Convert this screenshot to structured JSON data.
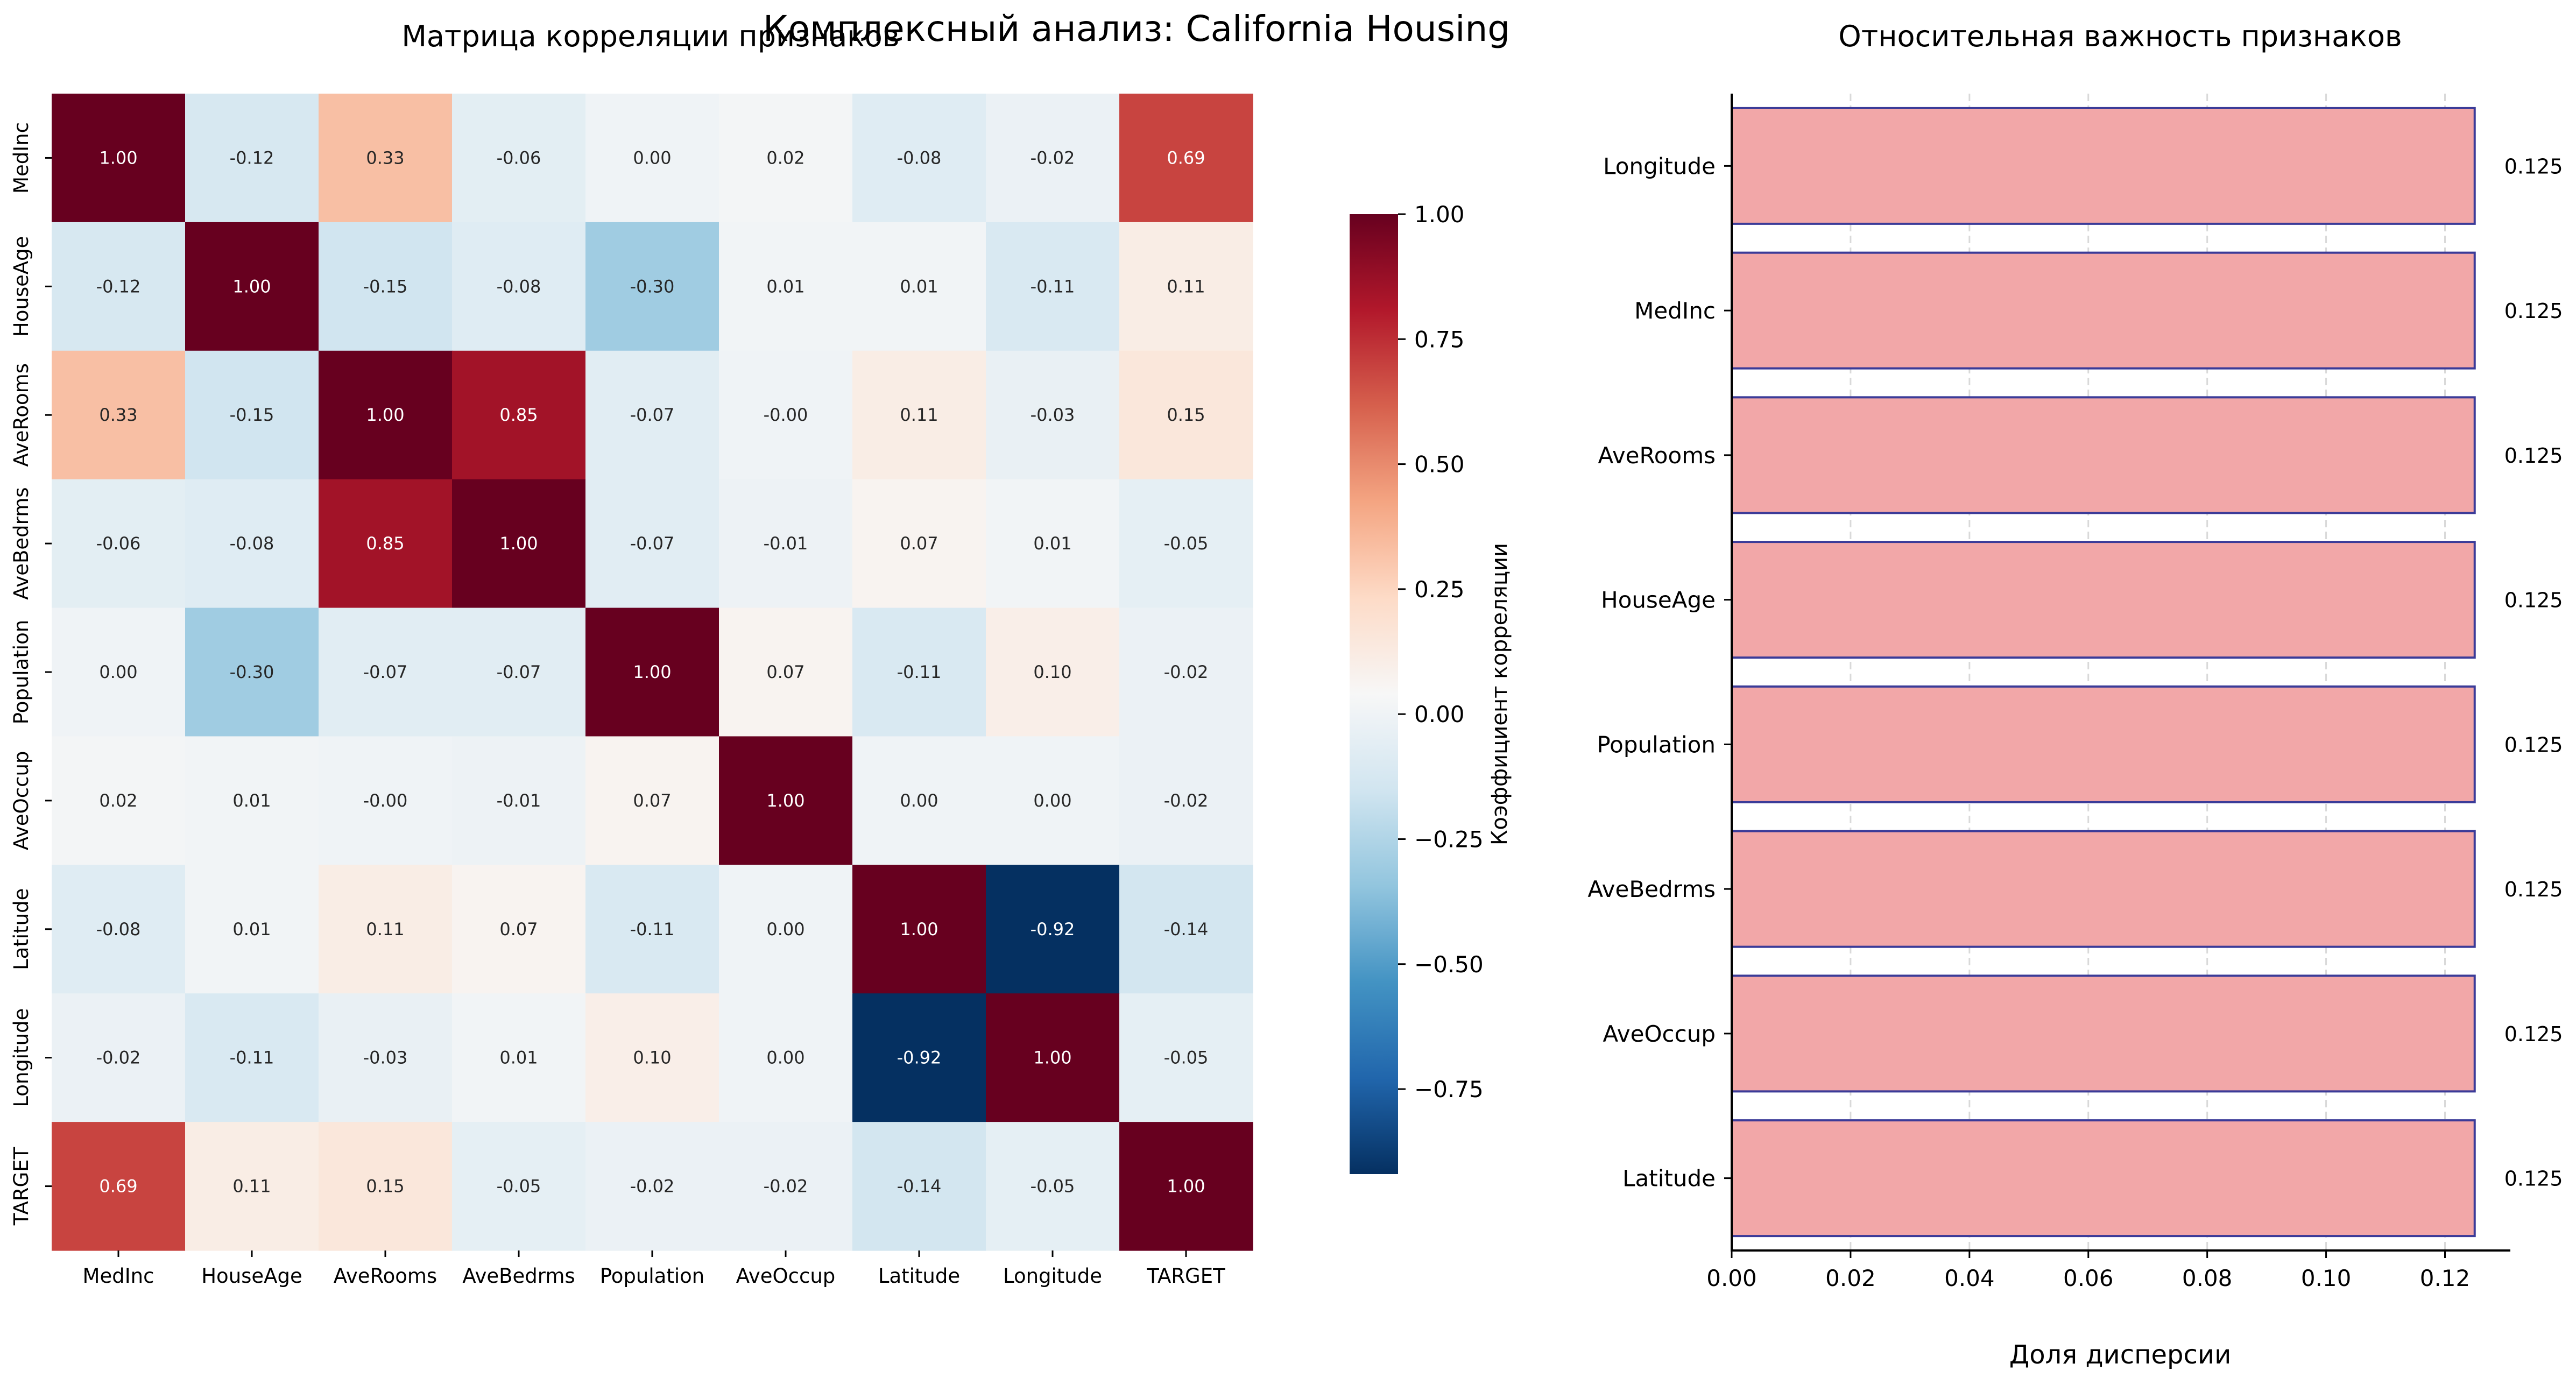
{
  "suptitle": "Комплексный анализ: California Housing",
  "chart_data": [
    {
      "type": "heatmap",
      "title": "Матрица корреляции признаков",
      "rows": [
        "MedInc",
        "HouseAge",
        "AveRooms",
        "AveBedrms",
        "Population",
        "AveOccup",
        "Latitude",
        "Longitude",
        "TARGET"
      ],
      "cols": [
        "MedInc",
        "HouseAge",
        "AveRooms",
        "AveBedrms",
        "Population",
        "AveOccup",
        "Latitude",
        "Longitude",
        "TARGET"
      ],
      "values": [
        [
          1.0,
          -0.12,
          0.33,
          -0.06,
          0.0,
          0.02,
          -0.08,
          -0.02,
          0.69
        ],
        [
          -0.12,
          1.0,
          -0.15,
          -0.08,
          -0.3,
          0.01,
          0.01,
          -0.11,
          0.11
        ],
        [
          0.33,
          -0.15,
          1.0,
          0.85,
          -0.07,
          -0.0,
          0.11,
          -0.03,
          0.15
        ],
        [
          -0.06,
          -0.08,
          0.85,
          1.0,
          -0.07,
          -0.01,
          0.07,
          0.01,
          -0.05
        ],
        [
          0.0,
          -0.3,
          -0.07,
          -0.07,
          1.0,
          0.07,
          -0.11,
          0.1,
          -0.02
        ],
        [
          0.02,
          0.01,
          -0.0,
          -0.01,
          0.07,
          1.0,
          0.0,
          0.0,
          -0.02
        ],
        [
          -0.08,
          0.01,
          0.11,
          0.07,
          -0.11,
          0.0,
          1.0,
          -0.92,
          -0.14
        ],
        [
          -0.02,
          -0.11,
          -0.03,
          0.01,
          0.1,
          0.0,
          -0.92,
          1.0,
          -0.05
        ],
        [
          0.69,
          0.11,
          0.15,
          -0.05,
          -0.02,
          -0.02,
          -0.14,
          -0.05,
          1.0
        ]
      ],
      "cell_labels": [
        [
          "1.00",
          "-0.12",
          "0.33",
          "-0.06",
          "0.00",
          "0.02",
          "-0.08",
          "-0.02",
          "0.69"
        ],
        [
          "-0.12",
          "1.00",
          "-0.15",
          "-0.08",
          "-0.30",
          "0.01",
          "0.01",
          "-0.11",
          "0.11"
        ],
        [
          "0.33",
          "-0.15",
          "1.00",
          "0.85",
          "-0.07",
          "-0.00",
          "0.11",
          "-0.03",
          "0.15"
        ],
        [
          "-0.06",
          "-0.08",
          "0.85",
          "1.00",
          "-0.07",
          "-0.01",
          "0.07",
          "0.01",
          "-0.05"
        ],
        [
          "0.00",
          "-0.30",
          "-0.07",
          "-0.07",
          "1.00",
          "0.07",
          "-0.11",
          "0.10",
          "-0.02"
        ],
        [
          "0.02",
          "0.01",
          "-0.00",
          "-0.01",
          "0.07",
          "1.00",
          "0.00",
          "0.00",
          "-0.02"
        ],
        [
          "-0.08",
          "0.01",
          "0.11",
          "0.07",
          "-0.11",
          "0.00",
          "1.00",
          "-0.92",
          "-0.14"
        ],
        [
          "-0.02",
          "-0.11",
          "-0.03",
          "0.01",
          "0.10",
          "0.00",
          "-0.92",
          "1.00",
          "-0.05"
        ],
        [
          "0.69",
          "0.11",
          "0.15",
          "-0.05",
          "-0.02",
          "-0.02",
          "-0.14",
          "-0.05",
          "1.00"
        ]
      ],
      "colormap": "RdBu_r",
      "colorbar": {
        "label": "Коэффициент корреляции",
        "range": [
          -0.92,
          1.0
        ],
        "ticks": [
          1.0,
          0.75,
          0.5,
          0.25,
          0.0,
          -0.25,
          -0.5,
          -0.75
        ],
        "tick_labels": [
          "1.00",
          "0.75",
          "0.50",
          "0.25",
          "0.00",
          "−0.25",
          "−0.50",
          "−0.75"
        ]
      }
    },
    {
      "type": "bar",
      "orientation": "horizontal",
      "title": "Относительная важность признаков",
      "xlabel": "Доля дисперсии",
      "categories": [
        "Longitude",
        "MedInc",
        "AveRooms",
        "HouseAge",
        "Population",
        "AveBedrms",
        "AveOccup",
        "Latitude"
      ],
      "values": [
        0.125,
        0.125,
        0.125,
        0.125,
        0.125,
        0.125,
        0.125,
        0.125
      ],
      "value_labels": [
        "0.125",
        "0.125",
        "0.125",
        "0.125",
        "0.125",
        "0.125",
        "0.125",
        "0.125"
      ],
      "xlim": [
        0.0,
        0.131
      ],
      "xticks": [
        0.0,
        0.02,
        0.04,
        0.06,
        0.08,
        0.1,
        0.12
      ],
      "xtick_labels": [
        "0.00",
        "0.02",
        "0.04",
        "0.06",
        "0.08",
        "0.10",
        "0.12"
      ],
      "grid": "x",
      "bar_color": "#f2a7a8",
      "edge_color": "#3b3b98"
    }
  ]
}
